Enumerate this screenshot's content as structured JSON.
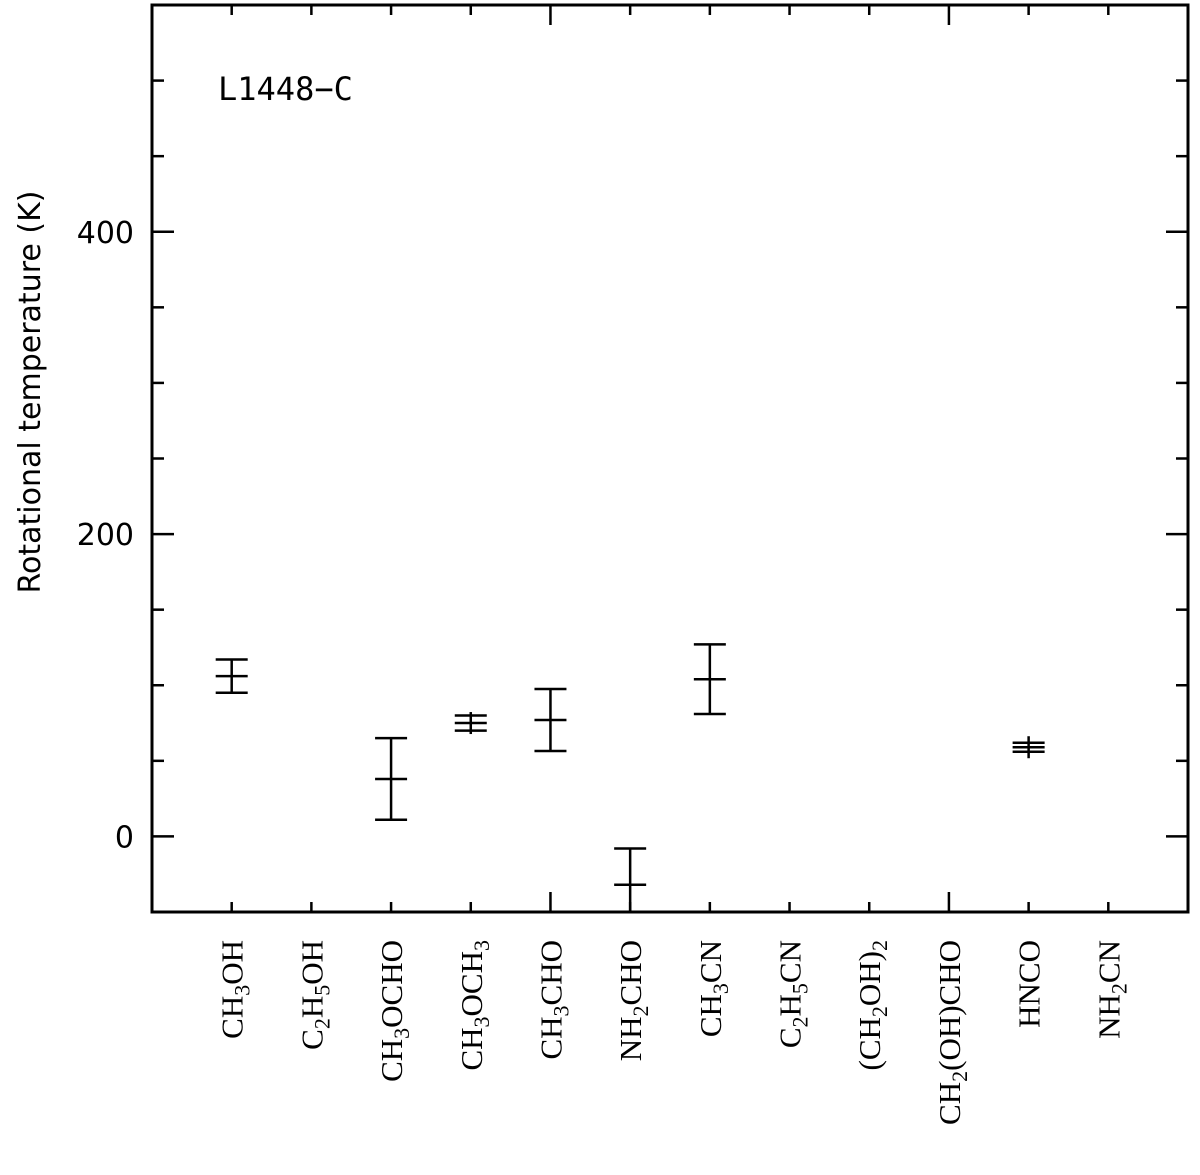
{
  "chart_data": {
    "type": "scatter",
    "title": "",
    "annotation": "L1448−C",
    "xlabel": "",
    "ylabel": "Rotational temperature (K)",
    "ylim": [
      -50,
      550
    ],
    "xlim": [
      0,
      13
    ],
    "yticks_major": [
      0,
      200,
      400
    ],
    "ytick_labels": [
      "0",
      "200",
      "400"
    ],
    "ytick_minor_step": 50,
    "grid": false,
    "categories": [
      "CH_3OH",
      "C_2H_5OH",
      "CH_3OCHO",
      "CH_3OCH_3",
      "CH_3CHO",
      "NH_2CHO",
      "CH_3CN",
      "C_2H_5CN",
      "(CH_2OH)_2",
      "CH_2(OH)CHO",
      "HNCO",
      "NH_2CN"
    ],
    "values": [
      106,
      null,
      38,
      75,
      77,
      -32,
      104,
      null,
      null,
      null,
      59,
      null
    ],
    "errors": [
      11,
      null,
      27,
      5,
      20.5,
      24,
      23,
      null,
      null,
      null,
      3,
      null
    ],
    "color": "#000000"
  }
}
